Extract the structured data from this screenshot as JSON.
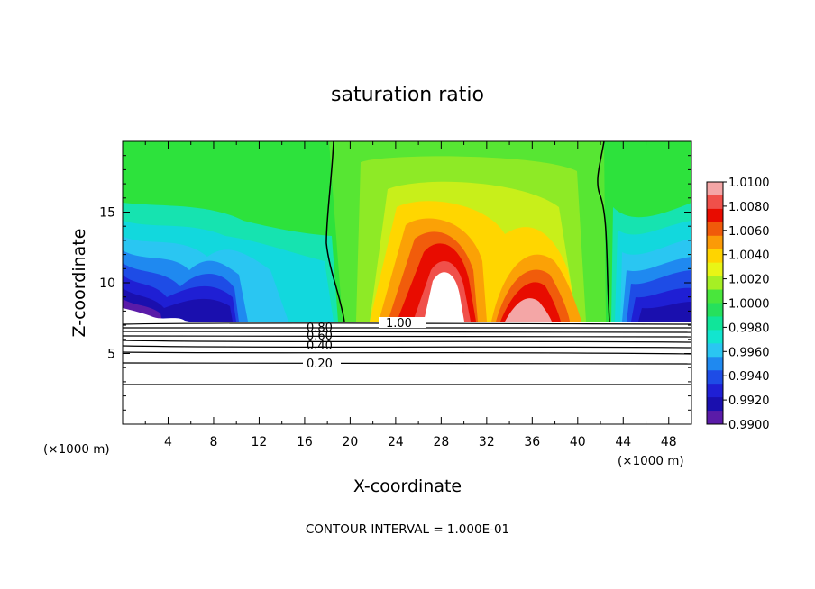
{
  "chart_data": {
    "type": "heatmap",
    "title": "saturation ratio",
    "xlabel": "X-coordinate",
    "ylabel": "Z-coordinate",
    "x_unit": "(×1000 m)",
    "footer": "CONTOUR INTERVAL = 1.000E-01",
    "xlim": [
      0,
      50
    ],
    "ylim": [
      0,
      20
    ],
    "x_ticks": [
      4,
      8,
      12,
      16,
      20,
      24,
      28,
      32,
      36,
      40,
      44,
      48
    ],
    "x_tick_labels": [
      "4",
      "8",
      "12",
      "16",
      "20",
      "24",
      "28",
      "32",
      "36",
      "40",
      "44",
      "48"
    ],
    "y_ticks": [
      5,
      10,
      15
    ],
    "y_tick_labels": [
      "5",
      "10",
      "15"
    ],
    "colorbar": {
      "min": 0.99,
      "max": 1.01,
      "labels": [
        "1.0100",
        "1.0080",
        "1.0060",
        "1.0040",
        "1.0020",
        "1.0000",
        "0.9980",
        "0.9960",
        "0.9940",
        "0.9920",
        "0.9900"
      ],
      "colors": [
        "#f4a6a6",
        "#f0504a",
        "#e80c00",
        "#f05a0a",
        "#fb9a07",
        "#ffd400",
        "#e9f516",
        "#a6ef24",
        "#49e63c",
        "#26e05c",
        "#10e59a",
        "#12e5cf",
        "#2ac6f2",
        "#1f89f0",
        "#1e4ce6",
        "#1f1fd4",
        "#1a0fae",
        "#5a1ba8"
      ]
    },
    "contour_lines": [
      {
        "label": "0.20",
        "z": 4.5
      },
      {
        "label": "0.40",
        "z": 5.6
      },
      {
        "label": "0.60",
        "z": 6.4
      },
      {
        "label": "0.80",
        "z": 6.9
      },
      {
        "label": "1.00",
        "z": 7.2
      },
      {
        "label": "",
        "z": 3.0
      }
    ],
    "contour_labels": [
      "0.20",
      "0.40",
      "0.60",
      "0.80",
      "1.00"
    ],
    "field_bottom_z": 7.2,
    "supersaturation_plume_centers_x": [
      28,
      34
    ]
  }
}
